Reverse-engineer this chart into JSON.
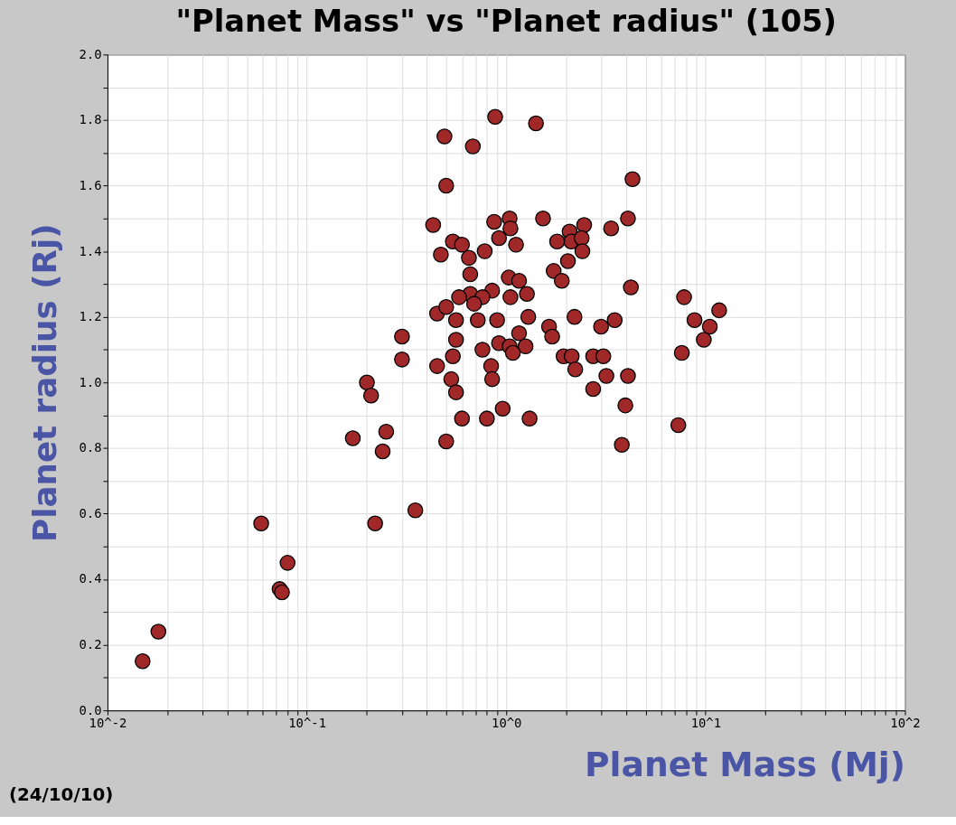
{
  "chart_data": {
    "type": "scatter",
    "title": "\"Planet Mass\"  vs \"Planet radius\" (105)",
    "xlabel": "Planet Mass (Mj)",
    "ylabel": "Planet radius (Rj)",
    "annotations": [
      "(24/10/10)"
    ],
    "log": "x",
    "grid": true,
    "legend": false,
    "marker": "circle",
    "xlim": [
      0.01,
      100
    ],
    "ylim": [
      0,
      2.0
    ],
    "xticks": [
      {
        "value": 0.01,
        "label": "10^-2"
      },
      {
        "value": 0.02,
        "label": null
      },
      {
        "value": 0.03,
        "label": null
      },
      {
        "value": 0.04,
        "label": null
      },
      {
        "value": 0.05,
        "label": null
      },
      {
        "value": 0.06,
        "label": null
      },
      {
        "value": 0.07,
        "label": null
      },
      {
        "value": 0.08,
        "label": null
      },
      {
        "value": 0.09,
        "label": null
      },
      {
        "value": 0.1,
        "label": "10^-1"
      },
      {
        "value": 0.2,
        "label": null
      },
      {
        "value": 0.3,
        "label": null
      },
      {
        "value": 0.4,
        "label": null
      },
      {
        "value": 0.5,
        "label": null
      },
      {
        "value": 0.6,
        "label": null
      },
      {
        "value": 0.7,
        "label": null
      },
      {
        "value": 0.8,
        "label": null
      },
      {
        "value": 0.9,
        "label": null
      },
      {
        "value": 1,
        "label": "10^0"
      },
      {
        "value": 2,
        "label": null
      },
      {
        "value": 3,
        "label": null
      },
      {
        "value": 4,
        "label": null
      },
      {
        "value": 5,
        "label": null
      },
      {
        "value": 6,
        "label": null
      },
      {
        "value": 7,
        "label": null
      },
      {
        "value": 8,
        "label": null
      },
      {
        "value": 9,
        "label": null
      },
      {
        "value": 10,
        "label": "10^1"
      },
      {
        "value": 20,
        "label": null
      },
      {
        "value": 30,
        "label": null
      },
      {
        "value": 40,
        "label": null
      },
      {
        "value": 50,
        "label": null
      },
      {
        "value": 60,
        "label": null
      },
      {
        "value": 70,
        "label": null
      },
      {
        "value": 80,
        "label": null
      },
      {
        "value": 90,
        "label": null
      },
      {
        "value": 100,
        "label": "10^2"
      }
    ],
    "yticks": [
      {
        "value": 0,
        "label": "0.0"
      },
      {
        "value": 0.1,
        "label": null
      },
      {
        "value": 0.2,
        "label": "0.2"
      },
      {
        "value": 0.3,
        "label": null
      },
      {
        "value": 0.4,
        "label": "0.4"
      },
      {
        "value": 0.5,
        "label": null
      },
      {
        "value": 0.6,
        "label": "0.6"
      },
      {
        "value": 0.7,
        "label": null
      },
      {
        "value": 0.8,
        "label": "0.8"
      },
      {
        "value": 0.9,
        "label": null
      },
      {
        "value": 1.0,
        "label": "1.0"
      },
      {
        "value": 1.1,
        "label": null
      },
      {
        "value": 1.2,
        "label": "1.2"
      },
      {
        "value": 1.3,
        "label": null
      },
      {
        "value": 1.4,
        "label": "1.4"
      },
      {
        "value": 1.5,
        "label": null
      },
      {
        "value": 1.6,
        "label": "1.6"
      },
      {
        "value": 1.7,
        "label": null
      },
      {
        "value": 1.8,
        "label": "1.8"
      },
      {
        "value": 1.9,
        "label": null
      },
      {
        "value": 2.0,
        "label": "2.0"
      }
    ],
    "series": [
      {
        "color": "#a02828",
        "x": [
          0.015,
          0.018,
          0.059,
          0.08,
          0.073,
          0.075,
          0.17,
          0.2,
          0.21,
          0.22,
          0.25,
          0.24,
          0.3,
          0.3,
          0.35,
          0.88,
          1.41,
          0.49,
          0.68,
          0.5,
          0.43,
          0.87,
          1.04,
          1.05,
          1.53,
          0.92,
          1.12,
          0.54,
          0.6,
          0.47,
          0.78,
          0.65,
          0.66,
          1.03,
          1.16,
          0.85,
          0.66,
          0.58,
          0.76,
          1.05,
          1.27,
          0.69,
          0.45,
          0.5,
          0.56,
          0.72,
          0.9,
          1.29,
          1.16,
          0.56,
          0.92,
          1.25,
          1.04,
          1.08,
          0.76,
          0.54,
          0.45,
          0.84,
          0.53,
          0.85,
          0.56,
          0.6,
          0.8,
          0.96,
          1.31,
          0.5,
          1.64,
          1.7,
          2.2,
          1.94,
          2.13,
          2.22,
          2.99,
          3.5,
          2.73,
          3.07,
          3.18,
          2.73,
          4.3,
          4.08,
          3.36,
          2.46,
          2.08,
          2.12,
          2.39,
          2.41,
          1.8,
          2.04,
          1.73,
          1.9,
          4.22,
          4.08,
          3.96,
          3.8,
          7.3,
          7.8,
          8.8,
          11.7,
          10.5,
          9.8,
          7.6
        ],
        "values": [
          0.15,
          0.24,
          0.57,
          0.45,
          0.37,
          0.36,
          0.83,
          1.0,
          0.96,
          0.57,
          0.85,
          0.79,
          1.14,
          1.07,
          0.61,
          1.81,
          1.79,
          1.75,
          1.72,
          1.6,
          1.48,
          1.49,
          1.5,
          1.47,
          1.5,
          1.44,
          1.42,
          1.43,
          1.42,
          1.39,
          1.4,
          1.38,
          1.33,
          1.32,
          1.31,
          1.28,
          1.27,
          1.26,
          1.26,
          1.26,
          1.27,
          1.24,
          1.21,
          1.23,
          1.19,
          1.19,
          1.19,
          1.2,
          1.15,
          1.13,
          1.12,
          1.11,
          1.11,
          1.09,
          1.1,
          1.08,
          1.05,
          1.05,
          1.01,
          1.01,
          0.97,
          0.89,
          0.89,
          0.92,
          0.89,
          0.82,
          1.17,
          1.14,
          1.2,
          1.08,
          1.08,
          1.04,
          1.17,
          1.19,
          1.08,
          1.08,
          1.02,
          0.98,
          1.62,
          1.5,
          1.47,
          1.48,
          1.46,
          1.43,
          1.44,
          1.4,
          1.43,
          1.37,
          1.34,
          1.31,
          1.29,
          1.02,
          0.93,
          0.81,
          0.87,
          1.26,
          1.19,
          1.22,
          1.17,
          1.13,
          1.09
        ]
      }
    ]
  }
}
